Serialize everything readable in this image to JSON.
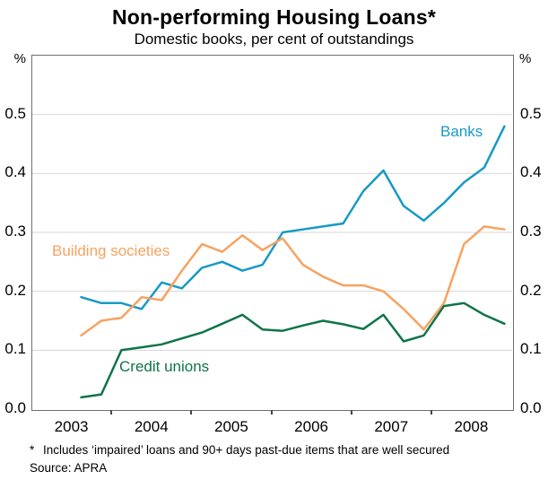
{
  "chart": {
    "title": "Non-performing Housing Loans*",
    "subtitle": "Domestic books, per cent of outstandings",
    "unit_left": "%",
    "unit_right": "%",
    "footnote_marker": "*",
    "footnote_text": "Includes ‘impaired’ loans and 90+ days past-due items that are well secured",
    "source": "Source: APRA"
  },
  "chart_data": {
    "type": "line",
    "title": "Non-performing Housing Loans",
    "subtitle": "Domestic books, per cent of outstandings",
    "unit": "per cent of outstandings",
    "frequency": "quarterly",
    "x_quarters": [
      "2003-Q3",
      "2003-Q4",
      "2004-Q1",
      "2004-Q2",
      "2004-Q3",
      "2004-Q4",
      "2005-Q1",
      "2005-Q2",
      "2005-Q3",
      "2005-Q4",
      "2006-Q1",
      "2006-Q2",
      "2006-Q3",
      "2006-Q4",
      "2007-Q1",
      "2007-Q2",
      "2007-Q3",
      "2007-Q4",
      "2008-Q1",
      "2008-Q2",
      "2008-Q3",
      "2008-Q4"
    ],
    "series": [
      {
        "name": "Banks",
        "color": "#1899C4",
        "values": [
          0.19,
          0.18,
          0.18,
          0.17,
          0.215,
          0.205,
          0.24,
          0.25,
          0.235,
          0.245,
          0.3,
          0.305,
          0.31,
          0.315,
          0.37,
          0.405,
          0.345,
          0.32,
          0.35,
          0.385,
          0.41,
          0.48
        ]
      },
      {
        "name": "Building societies",
        "color": "#F8A25F",
        "values": [
          0.125,
          0.15,
          0.155,
          0.19,
          0.185,
          0.235,
          0.28,
          0.267,
          0.295,
          0.27,
          0.29,
          0.245,
          0.225,
          0.21,
          0.21,
          0.2,
          0.17,
          0.135,
          0.18,
          0.28,
          0.31,
          0.305
        ]
      },
      {
        "name": "Credit unions",
        "color": "#0F7449",
        "values": [
          0.02,
          0.025,
          0.1,
          0.105,
          0.11,
          0.12,
          0.13,
          0.145,
          0.16,
          0.135,
          0.133,
          0.142,
          0.15,
          0.144,
          0.136,
          0.16,
          0.115,
          0.125,
          0.175,
          0.18,
          0.16,
          0.145
        ]
      }
    ],
    "ylim": [
      0.0,
      0.6
    ],
    "y_gridlines": [
      0.1,
      0.2,
      0.3,
      0.4,
      0.5
    ],
    "y_tick_labels": [
      "0.0",
      "0.1",
      "0.2",
      "0.3",
      "0.4",
      "0.5"
    ],
    "y_tick_values": [
      0.0,
      0.1,
      0.2,
      0.3,
      0.4,
      0.5
    ],
    "x_year_labels": [
      "2003",
      "2004",
      "2005",
      "2006",
      "2007",
      "2008"
    ],
    "x_range_years": [
      2003,
      2009
    ],
    "grid_on": true,
    "legend_position": "labels-on-chart",
    "gridline_color": "#d6d6d6",
    "frame_color": "#6e6e6e"
  }
}
